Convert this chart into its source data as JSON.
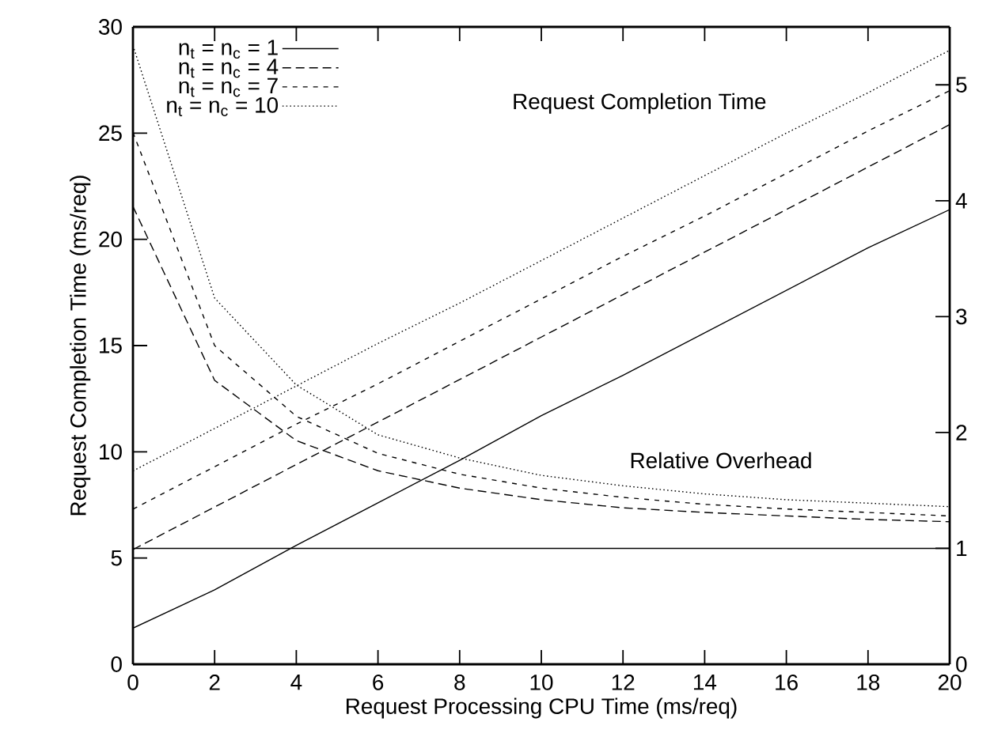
{
  "chart_data": {
    "type": "line",
    "xlabel": "Request Processing CPU Time (ms/req)",
    "ylabel": "Request Completion Time (ms/req)",
    "x": [
      0,
      2,
      4,
      6,
      8,
      10,
      12,
      14,
      16,
      18,
      20
    ],
    "xlim": [
      0,
      20
    ],
    "xticks": [
      0,
      2,
      4,
      6,
      8,
      10,
      12,
      14,
      16,
      18,
      20
    ],
    "ylim": [
      0,
      30
    ],
    "yticks": [
      0,
      5,
      10,
      15,
      20,
      25,
      30
    ],
    "y2lim": [
      0,
      5.5
    ],
    "y2ticks": [
      0,
      1,
      2,
      3,
      4,
      5
    ],
    "legend": "top left",
    "grid": false,
    "marker": "none",
    "annotations": [
      "Request Completion Time",
      "Relative Overhead"
    ],
    "series": [
      {
        "name": "n$_{t}$ = n$_{c}$ = 1",
        "color": "#000000",
        "line_style": "solid",
        "values": [
          1.7,
          3.5,
          5.6,
          7.6,
          9.6,
          11.7,
          13.6,
          15.6,
          17.6,
          19.6,
          21.4
        ]
      },
      {
        "name": "n$_{t}$ = n$_{c}$ = 4",
        "color": "#000000",
        "line_style": "long dashed",
        "values": [
          5.4,
          7.4,
          9.4,
          11.4,
          13.4,
          15.4,
          17.4,
          19.4,
          21.4,
          23.4,
          25.4
        ]
      },
      {
        "name": "n$_{t}$ = n$_{c}$ = 7",
        "color": "#000000",
        "line_style": "dashed",
        "values": [
          7.3,
          9.3,
          11.3,
          13.2,
          15.2,
          17.2,
          19.2,
          21.1,
          23.1,
          25.1,
          27.0
        ]
      },
      {
        "name": "n$_{t}$ = n$_{c}$ = 10",
        "color": "#000000",
        "line_style": "dotted",
        "values": [
          9.1,
          11.1,
          13.1,
          15.1,
          17.0,
          19.0,
          21.0,
          23.0,
          25.0,
          26.9,
          28.9
        ]
      },
      {
        "color": "#000000",
        "line_style": "solid",
        "axis": "y2",
        "values": [
          1.0,
          1.0,
          1.0,
          1.0,
          1.0,
          1.0,
          1.0,
          1.0,
          1.0,
          1.0,
          1.0
        ]
      },
      {
        "color": "#000000",
        "line_style": "long dashed",
        "axis": "y2",
        "values": [
          3.95,
          2.45,
          1.93,
          1.67,
          1.52,
          1.42,
          1.35,
          1.31,
          1.28,
          1.25,
          1.23
        ]
      },
      {
        "color": "#000000",
        "line_style": "dashed",
        "axis": "y2",
        "values": [
          4.59,
          2.75,
          2.14,
          1.82,
          1.64,
          1.52,
          1.44,
          1.38,
          1.34,
          1.31,
          1.28
        ]
      },
      {
        "color": "#000000",
        "line_style": "dotted",
        "axis": "y2",
        "values": [
          5.34,
          3.16,
          2.41,
          1.98,
          1.78,
          1.63,
          1.54,
          1.47,
          1.42,
          1.39,
          1.36
        ]
      }
    ]
  }
}
